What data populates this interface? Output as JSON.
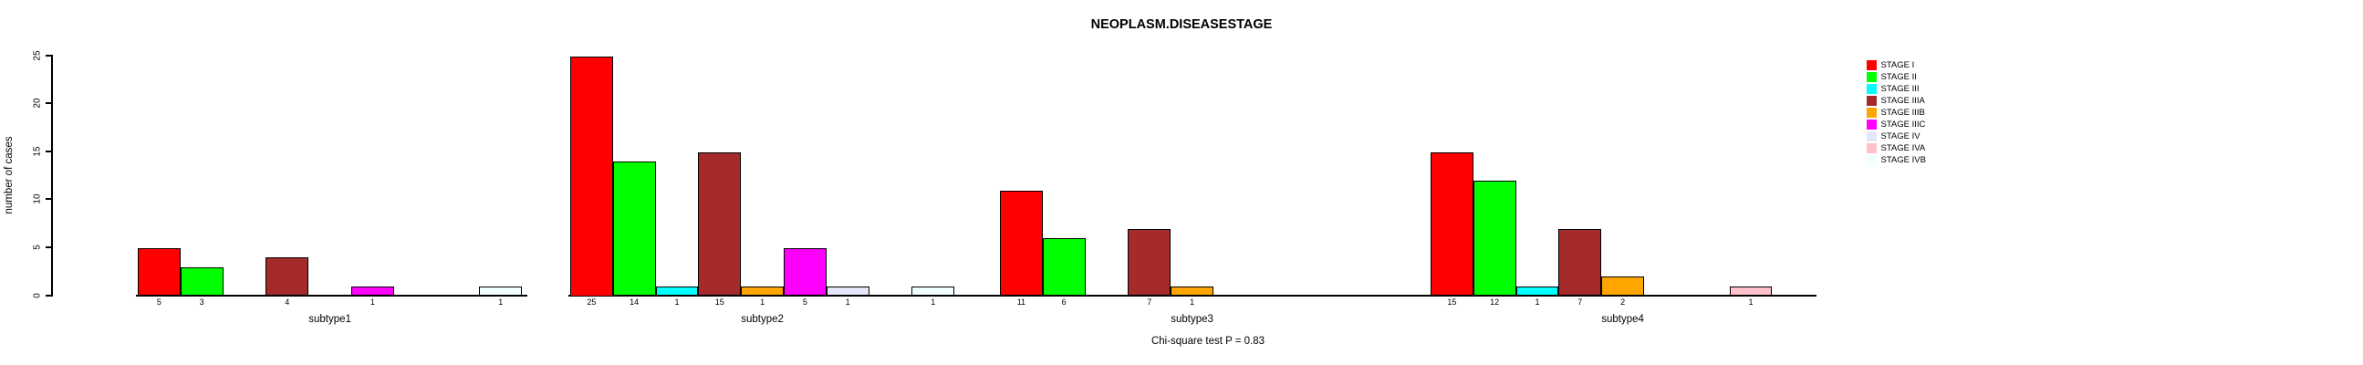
{
  "title": "NEOPLASM.DISEASESTAGE",
  "footer": "Chi-square test P = 0.83",
  "chart_data": {
    "type": "bar",
    "title": "NEOPLASM.DISEASESTAGE",
    "xlabel": "",
    "ylabel": "number of cases",
    "ylim": [
      0,
      25
    ],
    "yticks": [
      0,
      5,
      10,
      15,
      20,
      25
    ],
    "grid": false,
    "legend_position": "right",
    "annotation": "Chi-square test P = 0.83",
    "value_labels": "nonzero counts printed under each bar",
    "categories": [
      "subtype1",
      "subtype2",
      "subtype3",
      "subtype4"
    ],
    "series": [
      {
        "name": "STAGE I",
        "color": "#FF0000",
        "values": [
          5,
          25,
          11,
          15
        ]
      },
      {
        "name": "STAGE II",
        "color": "#00FF00",
        "values": [
          3,
          14,
          6,
          12
        ]
      },
      {
        "name": "STAGE III",
        "color": "#00FFFF",
        "values": [
          0,
          1,
          0,
          1
        ]
      },
      {
        "name": "STAGE IIIA",
        "color": "#A52A2A",
        "values": [
          4,
          15,
          7,
          7
        ]
      },
      {
        "name": "STAGE IIIB",
        "color": "#FFA500",
        "values": [
          0,
          1,
          1,
          2
        ]
      },
      {
        "name": "STAGE IIIC",
        "color": "#FF00FF",
        "values": [
          1,
          5,
          0,
          0
        ]
      },
      {
        "name": "STAGE IV",
        "color": "#E6E6FA",
        "values": [
          0,
          1,
          0,
          0
        ]
      },
      {
        "name": "STAGE IVA",
        "color": "#FFC0CB",
        "values": [
          0,
          0,
          0,
          1
        ]
      },
      {
        "name": "STAGE IVB",
        "color": "#F0FFFF",
        "values": [
          1,
          1,
          0,
          0
        ]
      }
    ],
    "axis_color": "#000000",
    "bar_border_color": "#000000"
  }
}
